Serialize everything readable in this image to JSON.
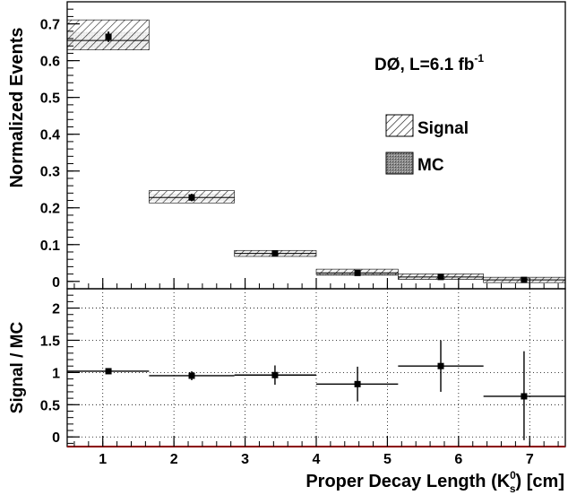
{
  "chart_data": [
    {
      "type": "bar",
      "ylabel": "Normalized Events",
      "annotation": "DØ, L=6.1 fb",
      "annotation_sup": "-1",
      "ylim": [
        -0.02,
        0.76
      ],
      "yticks": [
        "0",
        "0.1",
        "0.2",
        "0.3",
        "0.4",
        "0.5",
        "0.6",
        "0.7"
      ],
      "legend_position": "right",
      "series": [
        {
          "name": "Signal",
          "style": "hatched",
          "values": [
            0.67,
            0.23,
            0.076,
            0.026,
            0.013,
            0.004
          ]
        },
        {
          "name": "MC",
          "style": "shaded",
          "values": [
            0.655,
            0.228,
            0.076,
            0.023,
            0.012,
            0.004
          ]
        }
      ],
      "bins": [
        [
          0.5,
          1.65
        ],
        [
          1.65,
          2.85
        ],
        [
          2.85,
          4.0
        ],
        [
          4.0,
          5.15
        ],
        [
          5.15,
          6.35
        ],
        [
          6.35,
          7.5
        ]
      ],
      "points": {
        "x": [
          1.08,
          2.25,
          3.42,
          4.58,
          5.75,
          6.92
        ],
        "y": [
          0.665,
          0.228,
          0.076,
          0.023,
          0.012,
          0.004
        ],
        "yerr_lo": [
          0.014,
          0.01,
          0.004,
          0.003,
          0.002,
          0.002
        ],
        "yerr_hi": [
          0.014,
          0.01,
          0.004,
          0.003,
          0.002,
          0.002
        ]
      }
    },
    {
      "type": "scatter",
      "ylabel": "Signal / MC",
      "xlabel": "Proper Decay Length (K",
      "xlabel_sup": "0",
      "xlabel_sub": "s",
      "xlabel_tail": ") [cm]",
      "xlim": [
        0.5,
        7.5
      ],
      "ylim": [
        -0.15,
        2.3
      ],
      "xticks": [
        "1",
        "2",
        "3",
        "4",
        "5",
        "6",
        "7"
      ],
      "yticks": [
        "0",
        "0.5",
        "1",
        "1.5",
        "2"
      ],
      "grid": true,
      "points": {
        "x": [
          1.08,
          2.25,
          3.42,
          4.58,
          5.75,
          6.92
        ],
        "y": [
          1.02,
          0.95,
          0.96,
          0.82,
          1.1,
          0.63
        ],
        "yerr_lo": [
          0.04,
          0.07,
          0.15,
          0.27,
          0.4,
          0.68
        ],
        "yerr_hi": [
          0.04,
          0.07,
          0.15,
          0.27,
          0.4,
          0.7
        ],
        "xerr_lo": [
          0.58,
          0.6,
          0.57,
          0.58,
          0.6,
          0.57
        ],
        "xerr_hi": [
          0.57,
          0.6,
          0.58,
          0.57,
          0.6,
          0.58
        ]
      }
    }
  ]
}
